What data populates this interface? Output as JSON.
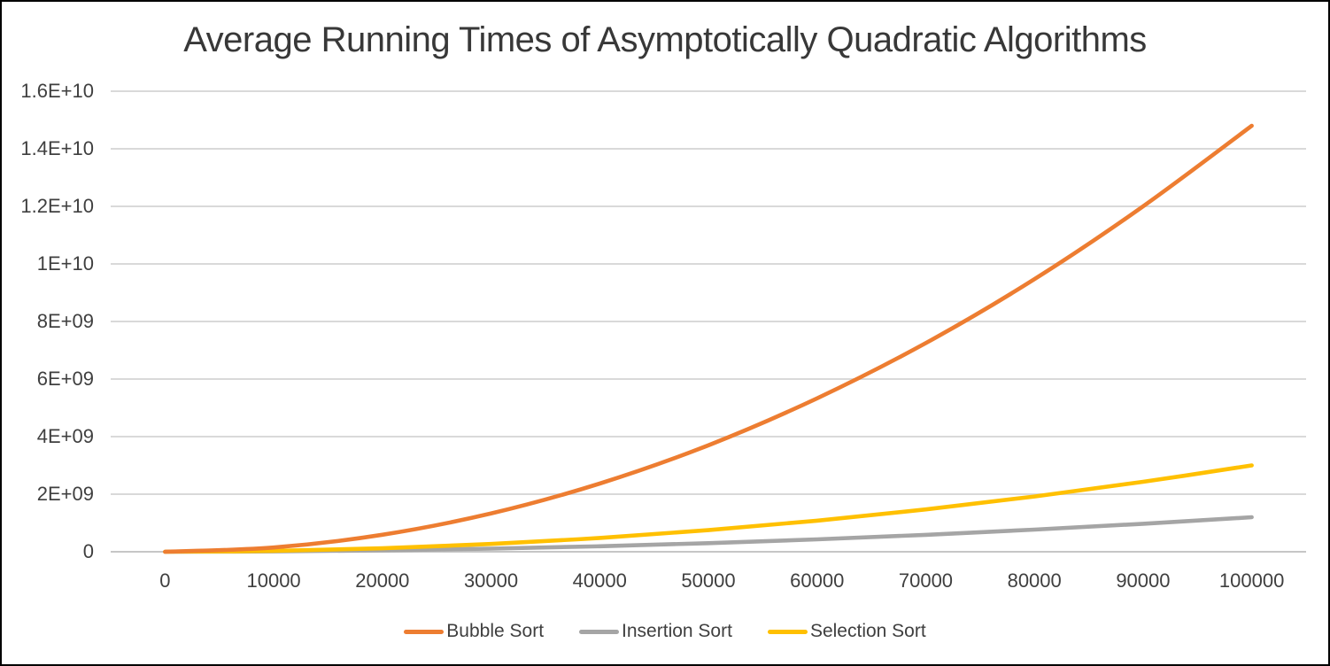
{
  "title": "Average Running Times of Asymptotically Quadratic Algorithms",
  "colors": {
    "gridline": "#D9D9D9",
    "axis_line": "#C6C6C6",
    "text": "#3f3f3f",
    "background": "#FFFFFF",
    "border": "#000000"
  },
  "chart_data": {
    "type": "line",
    "title": "Average Running Times of Asymptotically Quadratic Algorithms",
    "xlabel": "",
    "ylabel": "",
    "x": [
      0,
      10000,
      20000,
      30000,
      40000,
      50000,
      60000,
      70000,
      80000,
      90000,
      100000
    ],
    "x_tick_labels": [
      "0",
      "10000",
      "20000",
      "30000",
      "40000",
      "50000",
      "60000",
      "70000",
      "80000",
      "90000",
      "100000"
    ],
    "ylim": [
      0,
      16000000000
    ],
    "y_ticks": [
      0,
      2000000000,
      4000000000,
      6000000000,
      8000000000,
      10000000000,
      12000000000,
      14000000000,
      16000000000
    ],
    "y_tick_labels": [
      "0",
      "2E+09",
      "4E+09",
      "6E+09",
      "8E+09",
      "1E+10",
      "1.2E+10",
      "1.4E+10",
      "1.6E+10"
    ],
    "grid": "horizontal",
    "legend_position": "bottom",
    "smooth_lines": true,
    "series": [
      {
        "name": "Bubble Sort",
        "color": "#ED7D31",
        "values": [
          0,
          148000000,
          592000000,
          1330000000,
          2370000000,
          3700000000,
          5330000000,
          7250000000,
          9470000000,
          12000000000,
          14800000000
        ]
      },
      {
        "name": "Insertion Sort",
        "color": "#A5A5A5",
        "values": [
          0,
          12000000,
          48000000,
          108000000,
          192000000,
          300000000,
          432000000,
          588000000,
          768000000,
          972000000,
          1200000000
        ]
      },
      {
        "name": "Selection Sort",
        "color": "#FFC000",
        "values": [
          0,
          30000000,
          120000000,
          270000000,
          480000000,
          750000000,
          1080000000,
          1470000000,
          1920000000,
          2430000000,
          3000000000
        ]
      }
    ]
  }
}
